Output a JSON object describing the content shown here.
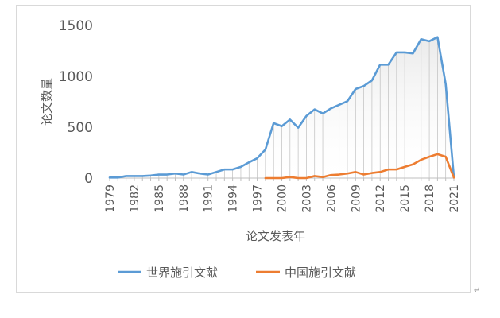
{
  "chart_data": {
    "type": "line",
    "title": "",
    "xlabel": "论文发表年",
    "ylabel": "论文数量",
    "ylim": [
      0,
      1500
    ],
    "yticks": [
      0,
      500,
      1000,
      1500
    ],
    "xlim": [
      1979,
      2021
    ],
    "xticks": [
      1979,
      1982,
      1985,
      1988,
      1991,
      1994,
      1997,
      2000,
      2003,
      2006,
      2009,
      2012,
      2015,
      2018,
      2021
    ],
    "grid": false,
    "legend_position": "bottom",
    "series": [
      {
        "name": "世界施引文献",
        "color": "#5B9BD5",
        "x": [
          1979,
          1980,
          1981,
          1982,
          1983,
          1984,
          1985,
          1986,
          1987,
          1988,
          1989,
          1990,
          1991,
          1992,
          1993,
          1994,
          1995,
          1996,
          1997,
          1998,
          1999,
          2000,
          2001,
          2002,
          2003,
          2004,
          2005,
          2006,
          2007,
          2008,
          2009,
          2010,
          2011,
          2012,
          2013,
          2014,
          2015,
          2016,
          2017,
          2018,
          2019,
          2020,
          2021
        ],
        "values": [
          5,
          5,
          20,
          20,
          20,
          25,
          35,
          35,
          45,
          35,
          60,
          45,
          35,
          60,
          85,
          85,
          110,
          155,
          195,
          280,
          540,
          510,
          575,
          495,
          610,
          675,
          635,
          685,
          720,
          755,
          875,
          905,
          960,
          1115,
          1115,
          1235,
          1235,
          1225,
          1365,
          1345,
          1385,
          925,
          10
        ]
      },
      {
        "name": "中国施引文献",
        "color": "#ED7D31",
        "x": [
          1998,
          1999,
          2000,
          2001,
          2002,
          2003,
          2004,
          2005,
          2006,
          2007,
          2008,
          2009,
          2010,
          2011,
          2012,
          2013,
          2014,
          2015,
          2016,
          2017,
          2018,
          2019,
          2020,
          2021
        ],
        "values": [
          0,
          0,
          0,
          10,
          0,
          0,
          20,
          10,
          30,
          35,
          45,
          60,
          35,
          50,
          60,
          85,
          85,
          110,
          135,
          180,
          210,
          235,
          210,
          5
        ]
      }
    ]
  }
}
